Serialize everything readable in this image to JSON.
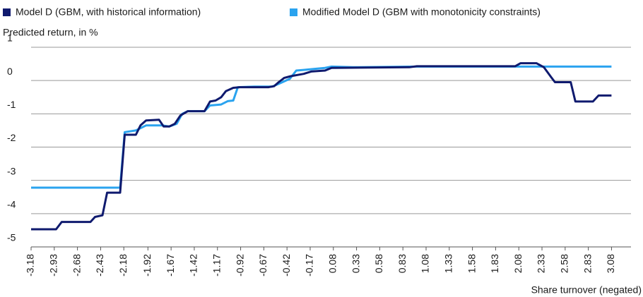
{
  "chart_data": {
    "type": "line",
    "y_label": "Predicted return, in %",
    "x_label": "Share turnover (negated)",
    "xlim": [
      -3.18,
      3.29
    ],
    "ylim": [
      -5,
      1
    ],
    "xticks": [
      -3.18,
      -2.93,
      -2.68,
      -2.43,
      -2.18,
      -1.92,
      -1.67,
      -1.42,
      -1.17,
      -0.92,
      -0.67,
      -0.42,
      -0.17,
      0.08,
      0.33,
      0.58,
      0.83,
      1.08,
      1.33,
      1.58,
      1.83,
      2.08,
      2.33,
      2.58,
      2.83,
      3.08
    ],
    "yticks": [
      -5,
      -4,
      -3,
      -2,
      -1,
      0,
      1
    ],
    "grid": true,
    "series": [
      {
        "name": "Model D (GBM, with historical information)",
        "color": "#0f1a6e",
        "x": [
          -3.18,
          -2.91,
          -2.85,
          -2.54,
          -2.49,
          -2.41,
          -2.36,
          -2.22,
          -2.17,
          -2.05,
          -2.0,
          -1.94,
          -1.8,
          -1.75,
          -1.69,
          -1.63,
          -1.57,
          -1.49,
          -1.31,
          -1.25,
          -1.19,
          -1.13,
          -1.08,
          -1.0,
          -0.93,
          -0.62,
          -0.56,
          -0.51,
          -0.45,
          -0.38,
          -0.24,
          -0.16,
          -0.01,
          0.06,
          0.9,
          0.98,
          2.04,
          2.1,
          2.27,
          2.35,
          2.43,
          2.47,
          2.64,
          2.69,
          2.88,
          2.94,
          3.08
        ],
        "values": [
          -4.47,
          -4.47,
          -4.25,
          -4.25,
          -4.1,
          -4.05,
          -3.37,
          -3.37,
          -1.63,
          -1.63,
          -1.35,
          -1.2,
          -1.18,
          -1.38,
          -1.38,
          -1.3,
          -1.05,
          -0.92,
          -0.92,
          -0.63,
          -0.6,
          -0.5,
          -0.32,
          -0.22,
          -0.2,
          -0.2,
          -0.17,
          -0.05,
          0.08,
          0.13,
          0.2,
          0.27,
          0.3,
          0.38,
          0.4,
          0.43,
          0.43,
          0.52,
          0.52,
          0.4,
          0.1,
          -0.05,
          -0.05,
          -0.63,
          -0.63,
          -0.45,
          -0.45
        ]
      },
      {
        "name": "Modified Model D (GBM with monotonicity constraints)",
        "color": "#2aa3ef",
        "x": [
          -3.18,
          -2.22,
          -2.17,
          -2.05,
          -1.94,
          -1.76,
          -1.69,
          -1.61,
          -1.55,
          -1.49,
          -1.31,
          -1.25,
          -1.13,
          -1.06,
          -1.0,
          -0.95,
          -0.77,
          -0.58,
          -0.51,
          -0.39,
          -0.32,
          -0.24,
          -0.13,
          -0.01,
          0.06,
          0.29,
          0.98,
          3.08
        ],
        "values": [
          -3.22,
          -3.22,
          -1.55,
          -1.5,
          -1.35,
          -1.35,
          -1.38,
          -1.3,
          -1.0,
          -0.92,
          -0.92,
          -0.75,
          -0.72,
          -0.62,
          -0.6,
          -0.2,
          -0.18,
          -0.18,
          -0.1,
          0.05,
          0.3,
          0.32,
          0.35,
          0.38,
          0.42,
          0.4,
          0.42,
          0.42
        ]
      }
    ]
  }
}
